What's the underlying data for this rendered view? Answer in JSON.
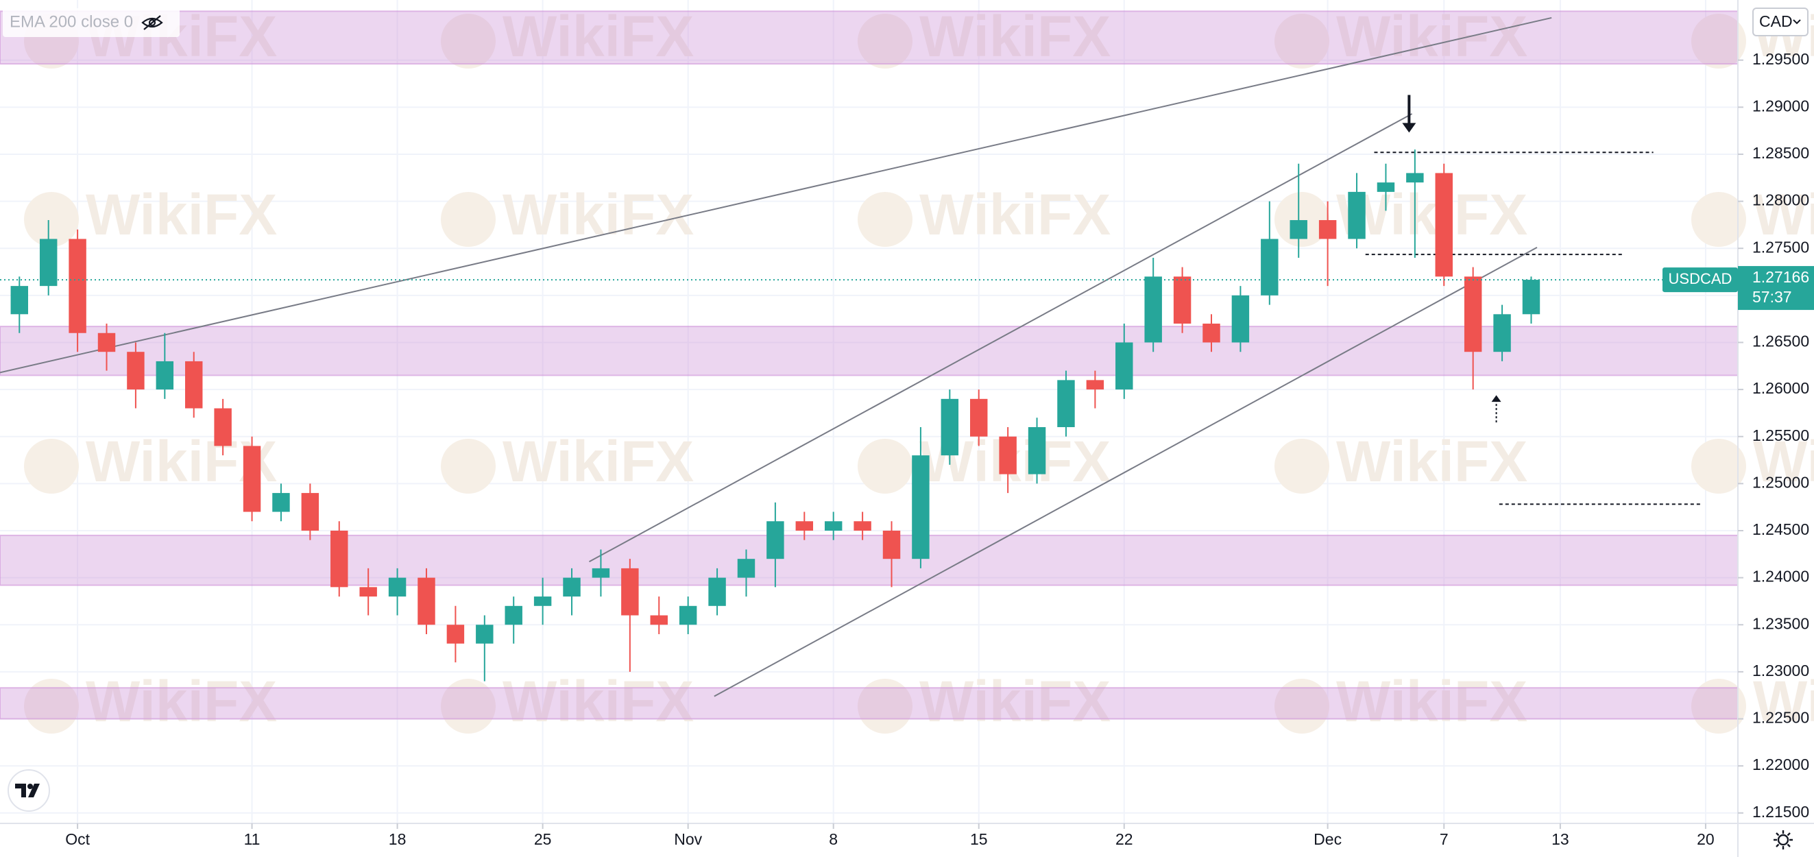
{
  "chart_data": {
    "type": "candlestick",
    "symbol": "USDCAD",
    "currency": "CAD",
    "indicator": "EMA 200 close 0",
    "countdown": "57:37",
    "watermark": "WikiFX",
    "up_color": "#26a69a",
    "down_color": "#ef5350",
    "grid": true,
    "xlim": [
      -2.667,
      57.11
    ],
    "ylim": [
      1.21389,
      1.30139
    ],
    "xticks": [
      {
        "value": 0,
        "label": "Oct"
      },
      {
        "value": 6,
        "label": "11"
      },
      {
        "value": 11,
        "label": "18"
      },
      {
        "value": 16,
        "label": "25"
      },
      {
        "value": 21,
        "label": "Nov"
      },
      {
        "value": 26,
        "label": "8"
      },
      {
        "value": 31,
        "label": "15"
      },
      {
        "value": 36,
        "label": "22"
      },
      {
        "value": 43,
        "label": "Dec"
      },
      {
        "value": 47,
        "label": "7"
      },
      {
        "value": 51,
        "label": "13"
      },
      {
        "value": 56,
        "label": "20"
      }
    ],
    "yticks": [
      {
        "value": 1.215,
        "label": "1.21500"
      },
      {
        "value": 1.22,
        "label": "1.22000"
      },
      {
        "value": 1.225,
        "label": "1.22500"
      },
      {
        "value": 1.23,
        "label": "1.23000"
      },
      {
        "value": 1.235,
        "label": "1.23500"
      },
      {
        "value": 1.24,
        "label": "1.24000"
      },
      {
        "value": 1.245,
        "label": "1.24500"
      },
      {
        "value": 1.25,
        "label": "1.25000"
      },
      {
        "value": 1.255,
        "label": "1.25500"
      },
      {
        "value": 1.26,
        "label": "1.26000"
      },
      {
        "value": 1.265,
        "label": "1.26500"
      },
      {
        "value": 1.27,
        "label": "1.27000"
      },
      {
        "value": 1.275,
        "label": "1.27500"
      },
      {
        "value": 1.28,
        "label": "1.28000"
      },
      {
        "value": 1.285,
        "label": "1.28500"
      },
      {
        "value": 1.29,
        "label": "1.29000"
      },
      {
        "value": 1.295,
        "label": "1.29500"
      }
    ],
    "x": [
      -2,
      -1,
      0,
      1,
      2,
      3,
      4,
      5,
      6,
      7,
      8,
      9,
      10,
      11,
      12,
      13,
      14,
      15,
      16,
      17,
      18,
      19,
      20,
      21,
      22,
      23,
      24,
      25,
      26,
      27,
      28,
      29,
      30,
      31,
      32,
      33,
      34,
      35,
      36,
      37,
      38,
      39,
      40,
      41,
      42,
      43,
      44,
      45,
      46,
      47,
      48,
      49,
      50
    ],
    "series": [
      {
        "name": "USDCAD",
        "open": [
          1.268,
          1.271,
          1.276,
          1.266,
          1.264,
          1.26,
          1.263,
          1.258,
          1.254,
          1.247,
          1.249,
          1.245,
          1.239,
          1.238,
          1.24,
          1.235,
          1.233,
          1.235,
          1.237,
          1.238,
          1.24,
          1.241,
          1.236,
          1.235,
          1.237,
          1.24,
          1.242,
          1.246,
          1.245,
          1.246,
          1.245,
          1.242,
          1.253,
          1.259,
          1.255,
          1.251,
          1.256,
          1.261,
          1.26,
          1.265,
          1.272,
          1.267,
          1.265,
          1.27,
          1.276,
          1.278,
          1.276,
          1.281,
          1.282,
          1.283,
          1.272,
          1.264,
          1.268
        ],
        "high": [
          1.272,
          1.278,
          1.277,
          1.267,
          1.265,
          1.266,
          1.264,
          1.259,
          1.255,
          1.25,
          1.25,
          1.246,
          1.241,
          1.241,
          1.241,
          1.237,
          1.236,
          1.238,
          1.24,
          1.241,
          1.243,
          1.242,
          1.238,
          1.238,
          1.241,
          1.243,
          1.248,
          1.247,
          1.247,
          1.247,
          1.246,
          1.256,
          1.26,
          1.26,
          1.256,
          1.257,
          1.262,
          1.262,
          1.267,
          1.274,
          1.273,
          1.268,
          1.271,
          1.28,
          1.284,
          1.28,
          1.283,
          1.284,
          1.2855,
          1.284,
          1.273,
          1.269,
          1.272
        ],
        "low": [
          1.266,
          1.27,
          1.264,
          1.262,
          1.258,
          1.259,
          1.257,
          1.253,
          1.246,
          1.246,
          1.244,
          1.238,
          1.236,
          1.236,
          1.234,
          1.231,
          1.229,
          1.233,
          1.235,
          1.236,
          1.238,
          1.23,
          1.234,
          1.234,
          1.236,
          1.238,
          1.239,
          1.244,
          1.244,
          1.244,
          1.239,
          1.241,
          1.252,
          1.254,
          1.249,
          1.25,
          1.255,
          1.258,
          1.259,
          1.264,
          1.266,
          1.264,
          1.264,
          1.269,
          1.274,
          1.271,
          1.275,
          1.279,
          1.274,
          1.271,
          1.26,
          1.263,
          1.267
        ],
        "close": [
          1.271,
          1.276,
          1.266,
          1.264,
          1.26,
          1.263,
          1.258,
          1.254,
          1.247,
          1.249,
          1.245,
          1.239,
          1.238,
          1.24,
          1.235,
          1.233,
          1.235,
          1.237,
          1.238,
          1.24,
          1.241,
          1.236,
          1.235,
          1.237,
          1.24,
          1.242,
          1.246,
          1.245,
          1.246,
          1.245,
          1.242,
          1.253,
          1.259,
          1.255,
          1.251,
          1.256,
          1.261,
          1.26,
          1.265,
          1.272,
          1.267,
          1.265,
          1.27,
          1.276,
          1.278,
          1.276,
          1.281,
          1.282,
          1.283,
          1.272,
          1.264,
          1.268,
          1.27166
        ]
      }
    ],
    "zones": [
      {
        "low": 1.2946,
        "high": 1.3002
      },
      {
        "low": 1.2615,
        "high": 1.2667
      },
      {
        "low": 1.2392,
        "high": 1.2445
      },
      {
        "low": 1.225,
        "high": 1.2283
      }
    ],
    "trendlines": [
      {
        "x": [
          -2.667,
          50.7
        ],
        "y": [
          1.2618,
          1.2995
        ]
      },
      {
        "x": [
          17.6,
          45.9
        ],
        "y": [
          1.2417,
          1.2893
        ]
      },
      {
        "x": [
          21.9,
          50.2
        ],
        "y": [
          1.2274,
          1.2751
        ]
      }
    ],
    "levels": [
      {
        "value": 1.2852,
        "x": [
          44.6,
          54.2
        ]
      },
      {
        "value": 1.27435,
        "x": [
          44.3,
          53.2
        ]
      },
      {
        "value": 1.24781,
        "x": [
          48.9,
          55.9
        ]
      }
    ],
    "arrows": [
      {
        "x": 45.8,
        "from": 1.2913,
        "to": 1.2873,
        "style": "solid"
      },
      {
        "x": 48.8,
        "from": 1.2565,
        "to": 1.2594,
        "style": "dotted"
      }
    ]
  }
}
